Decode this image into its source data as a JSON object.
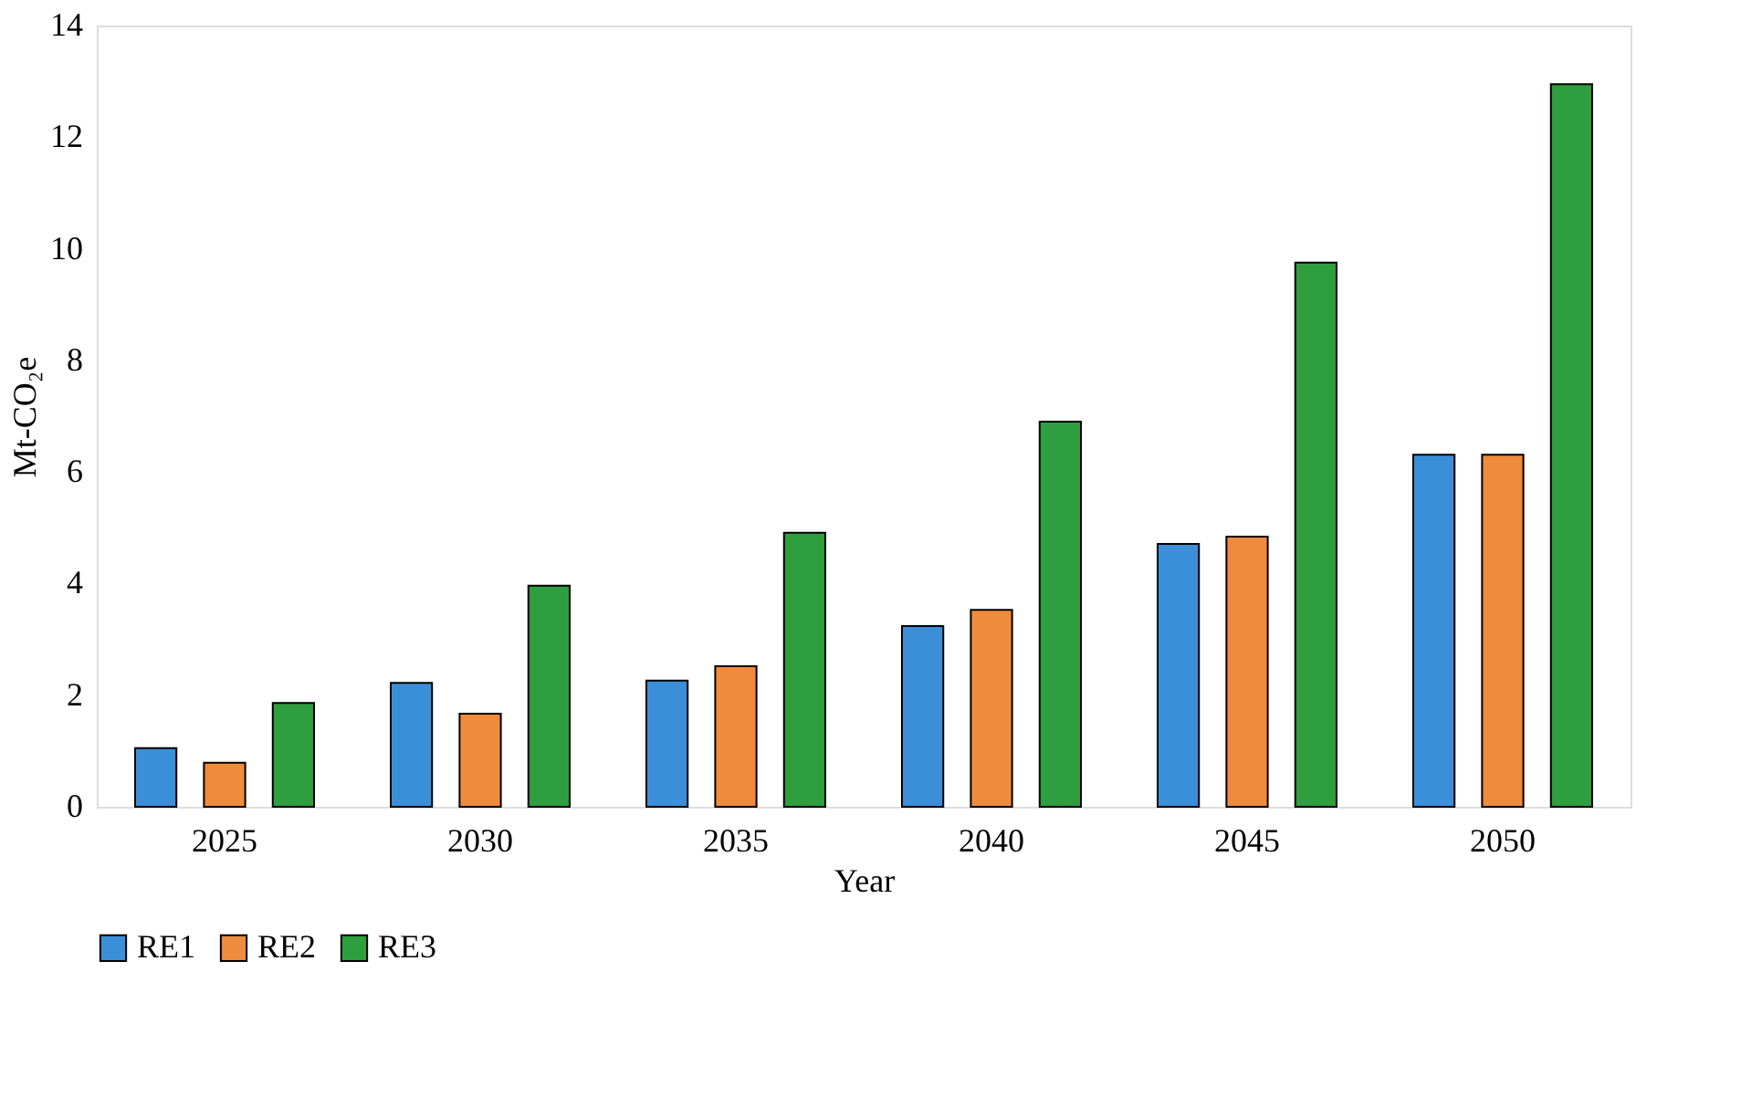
{
  "chart_data": {
    "type": "bar",
    "xlabel": "Year",
    "ylabel": "Mt-CO₂e",
    "categories": [
      "2025",
      "2030",
      "2035",
      "2040",
      "2045",
      "2050"
    ],
    "series": [
      {
        "name": "RE1",
        "color": "#3a8fd8",
        "values": [
          1.05,
          2.22,
          2.26,
          3.24,
          4.71,
          6.31
        ]
      },
      {
        "name": "RE2",
        "color": "#f08a3c",
        "values": [
          0.79,
          1.67,
          2.52,
          3.53,
          4.84,
          6.31
        ]
      },
      {
        "name": "RE3",
        "color": "#2e9e3e",
        "values": [
          1.86,
          3.96,
          4.91,
          6.9,
          9.75,
          12.95
        ]
      }
    ],
    "ylim": [
      0,
      14
    ],
    "yticks": [
      0,
      2,
      4,
      6,
      8,
      10,
      12,
      14
    ],
    "grid": false,
    "legend": "bottom"
  }
}
